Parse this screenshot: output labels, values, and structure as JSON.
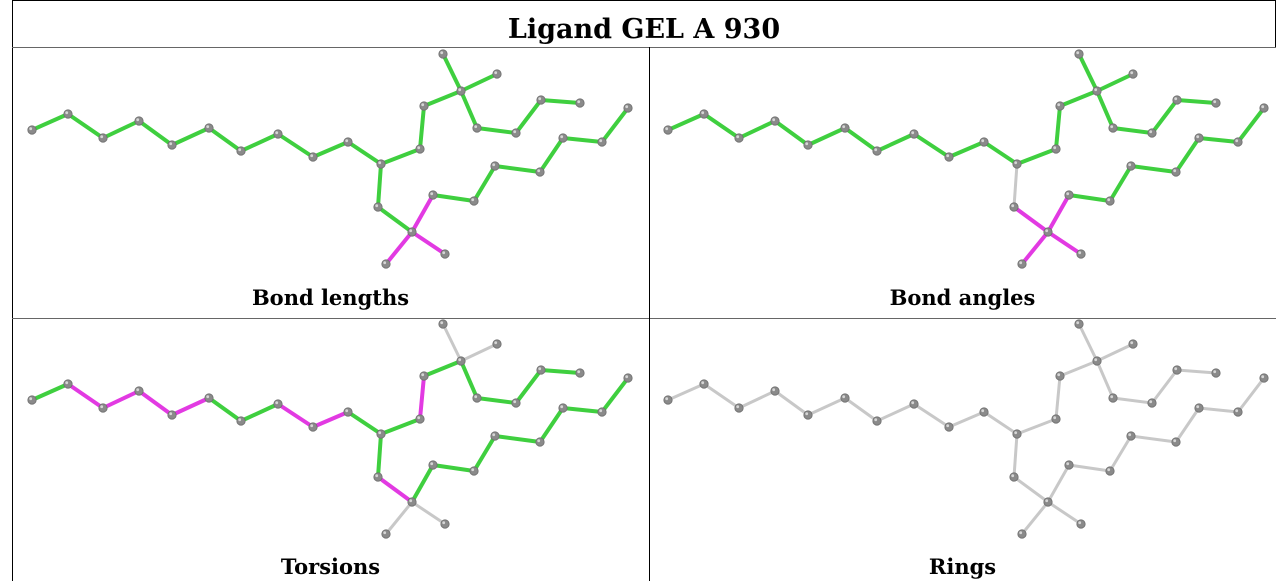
{
  "title": "Ligand GEL A 930",
  "colors": {
    "ok_bond": "#3fcf3f",
    "outlier_bond": "#e23ae2",
    "neutral_bond": "#c8c8c8",
    "atom": "#8a8a8a",
    "grid": "#000000"
  },
  "panels": [
    {
      "caption": "Bond lengths"
    },
    {
      "caption": "Bond angles"
    },
    {
      "caption": "Torsions"
    },
    {
      "caption": "Rings"
    }
  ]
}
